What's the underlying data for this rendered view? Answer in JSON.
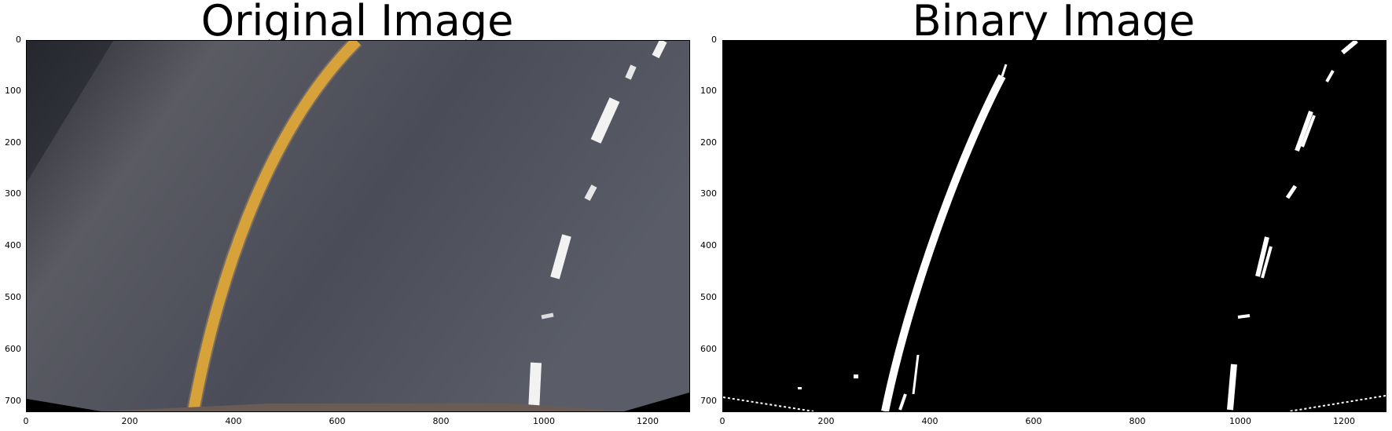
{
  "panels": [
    {
      "title": "Original Image",
      "y_ticks": [
        "0",
        "100",
        "200",
        "300",
        "400",
        "500",
        "600",
        "700"
      ],
      "x_ticks": [
        "0",
        "200",
        "400",
        "600",
        "800",
        "1000",
        "1200"
      ]
    },
    {
      "title": "Binary Image",
      "y_ticks": [
        "0",
        "100",
        "200",
        "300",
        "400",
        "500",
        "600",
        "700"
      ],
      "x_ticks": [
        "0",
        "200",
        "400",
        "600",
        "800",
        "1000",
        "1200"
      ]
    }
  ],
  "colors": {
    "road": "#50525c",
    "yellow_line": "#e0a21f",
    "white_lane": "#f2f2f2",
    "binary_bg": "#000000",
    "binary_fg": "#ffffff"
  }
}
